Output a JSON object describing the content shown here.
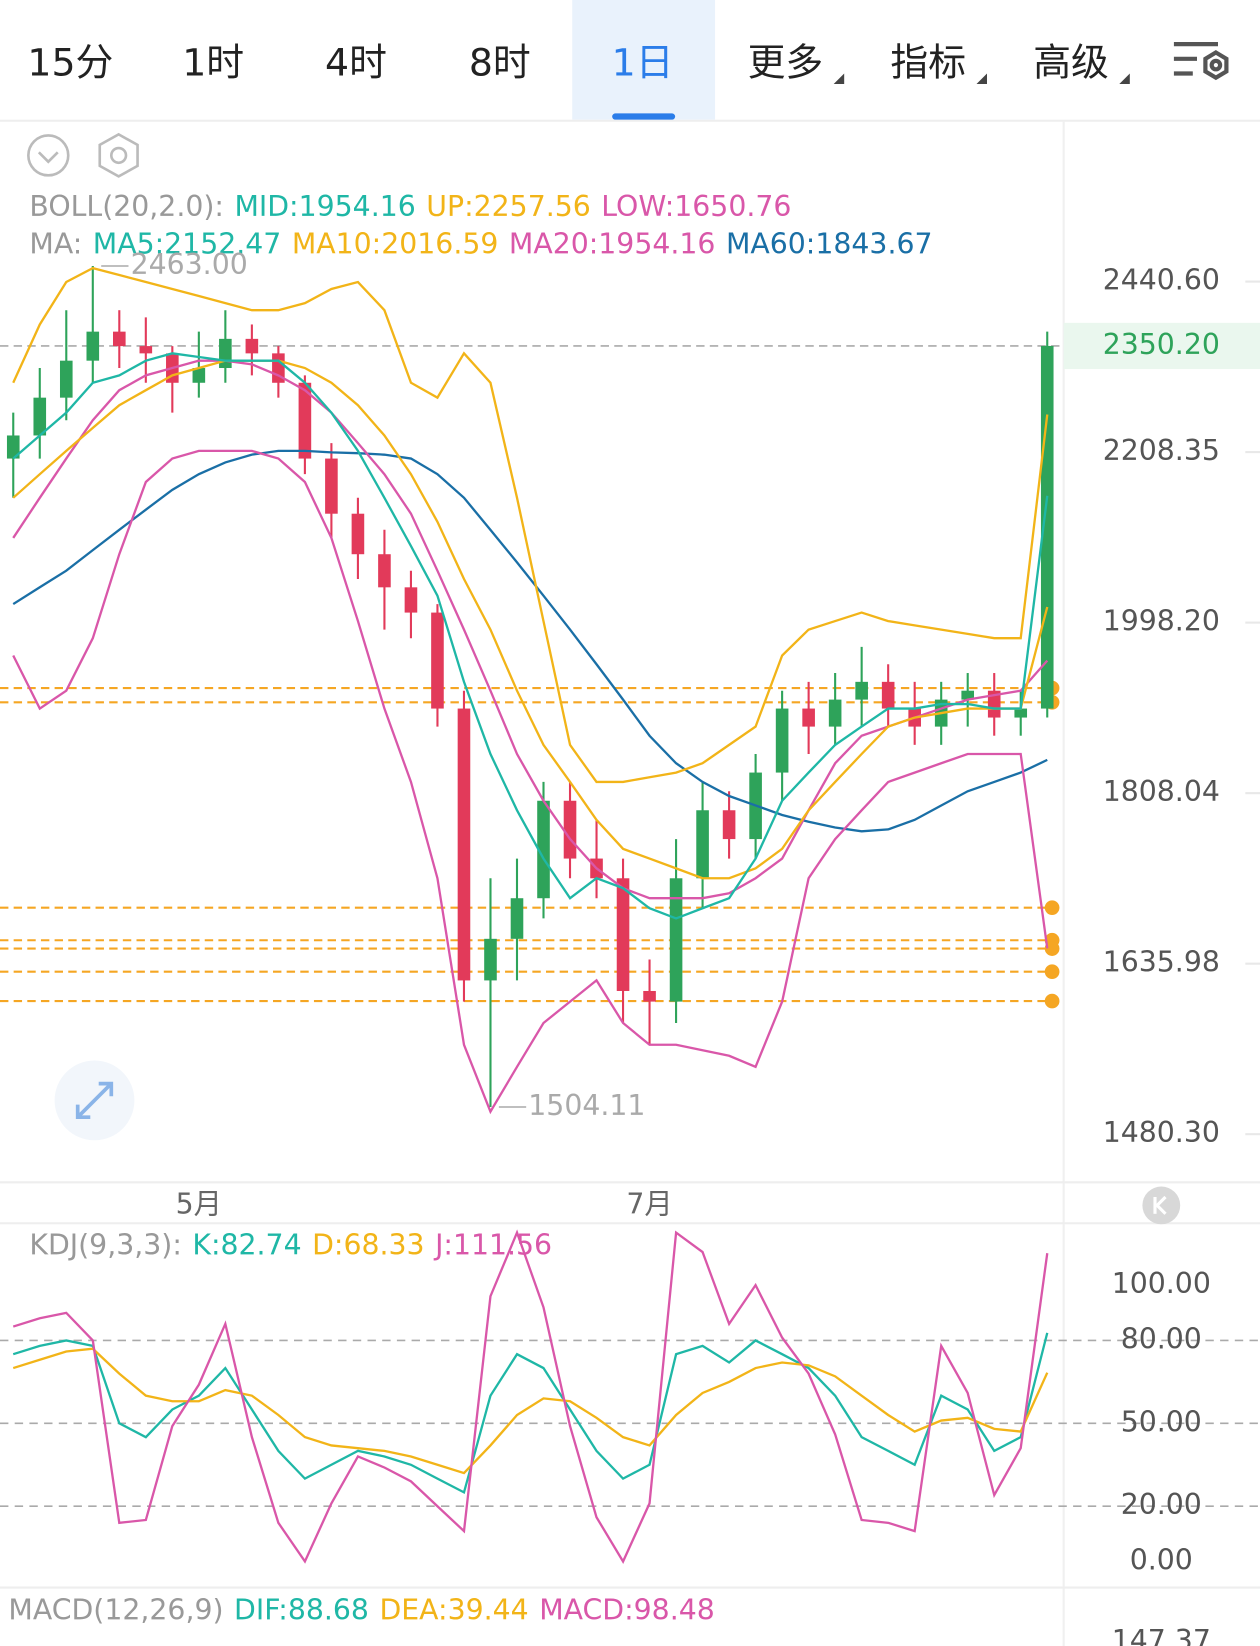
{
  "tabs": [
    {
      "label": "15分"
    },
    {
      "label": "1时"
    },
    {
      "label": "4时"
    },
    {
      "label": "8时"
    },
    {
      "label": "1日",
      "active": true
    },
    {
      "label": "更多",
      "dropdown": true
    },
    {
      "label": "指标",
      "dropdown": true
    },
    {
      "label": "高级",
      "dropdown": true
    }
  ],
  "chart_data": [
    {
      "type": "candlestick",
      "log_scale": true,
      "up_color": "#2ea35a",
      "down_color": "#e23a5a",
      "legend": [
        {
          "label": "BOLL(20,2.0):",
          "items": [
            {
              "text": "MID:1954.16",
              "color": "#1fb7a6"
            },
            {
              "text": "UP:2257.56",
              "color": "#f2b418"
            },
            {
              "text": "LOW:1650.76",
              "color": "#d957a9"
            }
          ]
        },
        {
          "label": "MA:",
          "items": [
            {
              "text": "MA5:2152.47",
              "color": "#1fb7a6"
            },
            {
              "text": "MA10:2016.59",
              "color": "#f2b418"
            },
            {
              "text": "MA20:1954.16",
              "color": "#d957a9"
            },
            {
              "text": "MA60:1843.67",
              "color": "#1a6fa6"
            }
          ]
        }
      ],
      "categories": [
        null,
        null,
        null,
        null,
        null,
        null,
        null,
        "5月",
        null,
        null,
        null,
        null,
        null,
        null,
        null,
        null,
        null,
        null,
        null,
        null,
        null,
        null,
        null,
        null,
        "7月",
        null,
        null,
        null,
        null,
        null,
        null,
        null,
        null,
        null,
        null,
        null,
        null,
        null,
        null,
        null
      ],
      "open": [
        2200,
        2230,
        2280,
        2330,
        2370,
        2350,
        2340,
        2300,
        2320,
        2360,
        2340,
        2300,
        2200,
        2130,
        2080,
        2040,
        2010,
        1900,
        1620,
        1660,
        1700,
        1800,
        1740,
        1720,
        1610,
        1600,
        1720,
        1790,
        1760,
        1830,
        1900,
        1880,
        1910,
        1930,
        1900,
        1880,
        1910,
        1920,
        1890,
        1900
      ],
      "high": [
        2260,
        2320,
        2400,
        2463,
        2400,
        2390,
        2350,
        2370,
        2400,
        2380,
        2350,
        2310,
        2220,
        2150,
        2110,
        2060,
        2020,
        1920,
        1720,
        1740,
        1820,
        1820,
        1780,
        1740,
        1640,
        1760,
        1820,
        1810,
        1850,
        1920,
        1930,
        1940,
        1970,
        1950,
        1930,
        1930,
        1940,
        1940,
        1920,
        2370
      ],
      "low": [
        2150,
        2200,
        2250,
        2300,
        2320,
        2300,
        2260,
        2280,
        2300,
        2310,
        2280,
        2180,
        2100,
        2050,
        1990,
        1980,
        1880,
        1600,
        1504.11,
        1620,
        1680,
        1720,
        1700,
        1580,
        1560,
        1580,
        1690,
        1740,
        1740,
        1800,
        1850,
        1860,
        1880,
        1880,
        1860,
        1860,
        1880,
        1870,
        1870,
        1890
      ],
      "close": [
        2230,
        2280,
        2330,
        2370,
        2350,
        2340,
        2300,
        2320,
        2360,
        2340,
        2300,
        2200,
        2130,
        2080,
        2040,
        2010,
        1900,
        1620,
        1660,
        1700,
        1800,
        1740,
        1720,
        1610,
        1600,
        1720,
        1790,
        1760,
        1830,
        1900,
        1880,
        1910,
        1930,
        1900,
        1880,
        1910,
        1920,
        1890,
        1900,
        2350.2
      ],
      "series": [
        {
          "color": "#1a6fa6",
          "values": [
            2020,
            2040,
            2060,
            2085,
            2110,
            2135,
            2160,
            2180,
            2195,
            2205,
            2210,
            2210,
            2208,
            2207,
            2205,
            2200,
            2180,
            2150,
            2110,
            2070,
            2030,
            1990,
            1950,
            1910,
            1870,
            1840,
            1820,
            1805,
            1795,
            1785,
            1778,
            1772,
            1768,
            1770,
            1780,
            1795,
            1810,
            1820,
            1830,
            1843.67
          ]
        },
        {
          "color": "#d957a9",
          "values": [
            2100,
            2150,
            2200,
            2250,
            2290,
            2310,
            2320,
            2330,
            2330,
            2325,
            2310,
            2290,
            2260,
            2220,
            2180,
            2130,
            2060,
            1990,
            1920,
            1850,
            1800,
            1760,
            1730,
            1710,
            1700,
            1700,
            1700,
            1705,
            1720,
            1740,
            1790,
            1840,
            1870,
            1880,
            1890,
            1900,
            1910,
            1915,
            1920,
            1954.16
          ]
        },
        {
          "color": "#f2b418",
          "values": [
            2300,
            2380,
            2440,
            2460,
            2450,
            2440,
            2430,
            2420,
            2410,
            2400,
            2400,
            2410,
            2430,
            2440,
            2400,
            2300,
            2280,
            2340,
            2300,
            2150,
            2000,
            1860,
            1820,
            1820,
            1825,
            1830,
            1840,
            1860,
            1880,
            1960,
            1990,
            2000,
            2010,
            2000,
            1995,
            1990,
            1985,
            1980,
            1980,
            2257.56
          ]
        },
        {
          "color": "#d957a9",
          "values": [
            1960,
            1900,
            1920,
            1980,
            2080,
            2170,
            2200,
            2210,
            2210,
            2210,
            2200,
            2170,
            2100,
            2000,
            1900,
            1820,
            1720,
            1560,
            1500,
            1540,
            1580,
            1600,
            1620,
            1580,
            1560,
            1560,
            1555,
            1550,
            1540,
            1600,
            1720,
            1760,
            1790,
            1820,
            1830,
            1840,
            1850,
            1850,
            1850,
            1650.76
          ]
        },
        {
          "color": "#f2b418",
          "values": [
            2150,
            2180,
            2210,
            2240,
            2270,
            2290,
            2310,
            2320,
            2330,
            2330,
            2330,
            2320,
            2300,
            2270,
            2230,
            2180,
            2120,
            2050,
            1990,
            1920,
            1860,
            1820,
            1780,
            1750,
            1740,
            1730,
            1720,
            1720,
            1730,
            1750,
            1790,
            1820,
            1850,
            1880,
            1890,
            1895,
            1900,
            1900,
            1900,
            2016.59
          ]
        },
        {
          "color": "#1fb7a6",
          "values": [
            2200,
            2230,
            2260,
            2300,
            2310,
            2330,
            2340,
            2335,
            2330,
            2330,
            2330,
            2300,
            2260,
            2210,
            2150,
            2090,
            2030,
            1930,
            1850,
            1790,
            1740,
            1700,
            1720,
            1710,
            1690,
            1680,
            1690,
            1700,
            1740,
            1800,
            1830,
            1860,
            1880,
            1900,
            1900,
            1905,
            1905,
            1900,
            1900,
            2152.47
          ]
        }
      ],
      "ylim": [
        1440,
        2682
      ],
      "yticks": [
        {
          "value": 2440.6,
          "label": "2440.60"
        },
        {
          "value": 2208.35,
          "label": "2208.35"
        },
        {
          "value": 1998.2,
          "label": "1998.20"
        },
        {
          "value": 1808.04,
          "label": "1808.04"
        },
        {
          "value": 1635.98,
          "label": "1635.98"
        },
        {
          "value": 1480.3,
          "label": "1480.30"
        }
      ],
      "last_price": {
        "value": 2350.2,
        "label": "2350.20"
      },
      "price_lines": [
        1923,
        1907,
        1690.6,
        1658.6,
        1650.5,
        1628.3,
        1600.5
      ],
      "price_line_color": "#f5a623",
      "annotations": [
        {
          "value": 2463,
          "label": "2463.00",
          "index": 3
        },
        {
          "value": 1504.11,
          "label": "1504.11",
          "index": 18
        }
      ]
    },
    {
      "type": "line",
      "legend": [
        {
          "label": "KDJ(9,3,3):",
          "items": [
            {
              "text": "K:82.74",
              "color": "#1fb7a6"
            },
            {
              "text": "D:68.33",
              "color": "#f2b418"
            },
            {
              "text": "J:111.56",
              "color": "#d957a9"
            }
          ]
        }
      ],
      "series": [
        {
          "color": "#1fb7a6",
          "values": [
            75,
            78,
            80,
            78,
            50,
            45,
            55,
            60,
            70,
            55,
            40,
            30,
            35,
            40,
            38,
            35,
            30,
            25,
            60,
            75,
            70,
            55,
            40,
            30,
            35,
            75,
            78,
            72,
            80,
            75,
            70,
            60,
            45,
            40,
            35,
            60,
            55,
            40,
            45,
            82.74
          ]
        },
        {
          "color": "#f2b418",
          "values": [
            70,
            73,
            76,
            77,
            68,
            60,
            58,
            58,
            62,
            60,
            53,
            45,
            42,
            41,
            40,
            38,
            35,
            32,
            42,
            53,
            59,
            58,
            52,
            45,
            42,
            53,
            61,
            65,
            70,
            72,
            71,
            67,
            60,
            53,
            47,
            51,
            52,
            48,
            47,
            68.33
          ]
        },
        {
          "color": "#d957a9",
          "values": [
            85,
            88,
            90,
            80,
            14,
            15,
            49,
            64,
            86,
            45,
            14,
            0,
            21,
            38,
            34,
            29,
            20,
            11,
            96,
            119,
            92,
            49,
            16,
            0,
            21,
            119,
            112,
            86,
            100,
            81,
            68,
            46,
            15,
            14,
            11,
            78,
            61,
            24,
            41,
            111.56
          ]
        }
      ],
      "ylim": [
        -8.7,
        122.4
      ],
      "yticks": [
        {
          "value": 100,
          "label": "100.00"
        },
        {
          "value": 80,
          "label": "80.00"
        },
        {
          "value": 50,
          "label": "50.00"
        },
        {
          "value": 20,
          "label": "20.00"
        },
        {
          "value": 0,
          "label": "0.00"
        }
      ]
    },
    {
      "type": "line",
      "legend": [
        {
          "label": "MACD(12,26,9)",
          "items": [
            {
              "text": "DIF:88.68",
              "color": "#1fb7a6"
            },
            {
              "text": "DEA:39.44",
              "color": "#f2b418"
            },
            {
              "text": "MACD:98.48",
              "color": "#d957a9"
            }
          ]
        }
      ],
      "yticks": [
        {
          "value": 147.37,
          "label": "147.37"
        }
      ]
    }
  ]
}
